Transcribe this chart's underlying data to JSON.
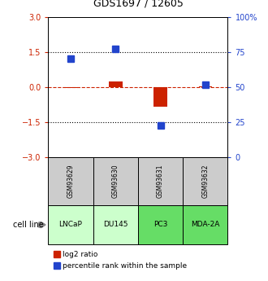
{
  "title": "GDS1697 / 12605",
  "samples": [
    "GSM93629",
    "GSM93630",
    "GSM93631",
    "GSM93632"
  ],
  "cell_lines": [
    "LNCaP",
    "DU145",
    "PC3",
    "MDA-2A"
  ],
  "cell_line_colors": [
    "#ccffcc",
    "#ccffcc",
    "#66dd66",
    "#66dd66"
  ],
  "log2_ratio": [
    -0.05,
    0.25,
    -0.85,
    0.05
  ],
  "percentile_rank_scaled": [
    1.2,
    1.65,
    -1.65,
    0.1
  ],
  "ylim": [
    -3,
    3
  ],
  "yticks_left": [
    -3,
    -1.5,
    0,
    1.5,
    3
  ],
  "right_ticks_pos": [
    -3,
    -1.5,
    0,
    1.5,
    3
  ],
  "right_tick_labels": [
    "0",
    "25",
    "50",
    "75",
    "100%"
  ],
  "red_color": "#cc2200",
  "blue_color": "#2244cc",
  "bar_width": 0.3,
  "marker_size": 6,
  "legend_red": "log2 ratio",
  "legend_blue": "percentile rank within the sample",
  "cell_line_label": "cell line"
}
